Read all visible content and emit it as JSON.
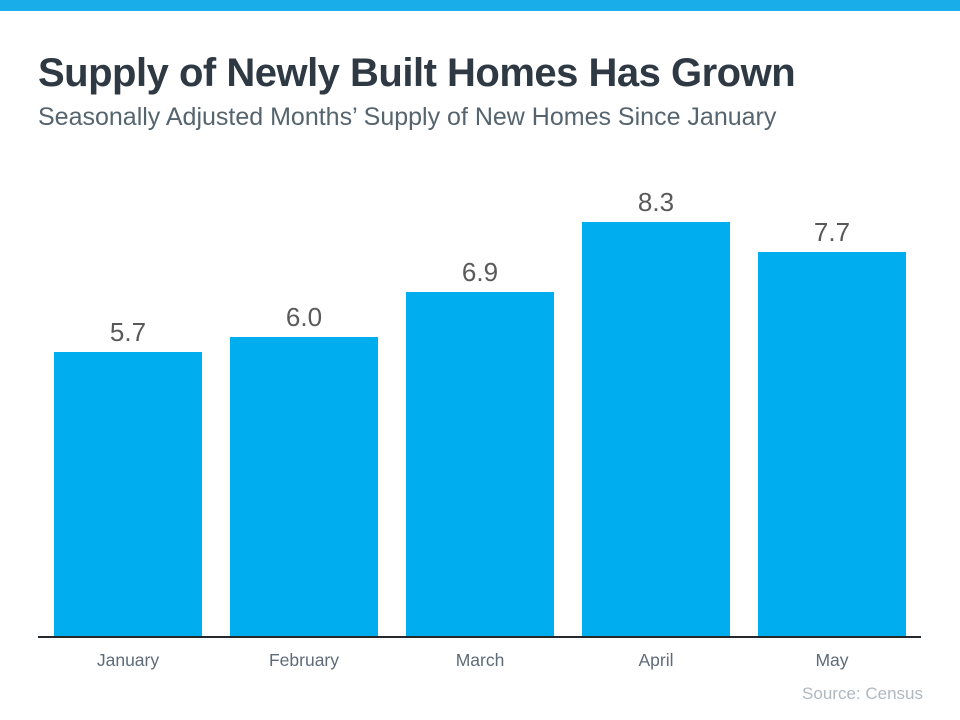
{
  "header": {
    "title": "Supply of Newly Built Homes Has Grown",
    "subtitle": "Seasonally Adjusted Months’ Supply of New Homes Since January"
  },
  "chart_data": {
    "type": "bar",
    "title": "Supply of Newly Built Homes Has Grown",
    "subtitle": "Seasonally Adjusted Months’ Supply of New Homes Since January",
    "categories": [
      "January",
      "February",
      "March",
      "April",
      "May"
    ],
    "values": [
      5.7,
      6.0,
      6.9,
      8.3,
      7.7
    ],
    "value_labels": [
      "5.7",
      "6.0",
      "6.9",
      "8.3",
      "7.7"
    ],
    "xlabel": "",
    "ylabel": "",
    "ylim": [
      0,
      8.5
    ],
    "grid": "off",
    "legend": "none",
    "bar_color": "#00aeef",
    "value_label_color": "#595959",
    "category_label_color": "#5e6b78",
    "axis_line_color": "#26292c"
  },
  "footer": {
    "source": "Source: Census"
  },
  "colors": {
    "top_strip": "#19adea",
    "title": "#2e3944",
    "subtitle": "#55646e",
    "background": "#ffffff",
    "source_text": "#b0b8bf"
  }
}
